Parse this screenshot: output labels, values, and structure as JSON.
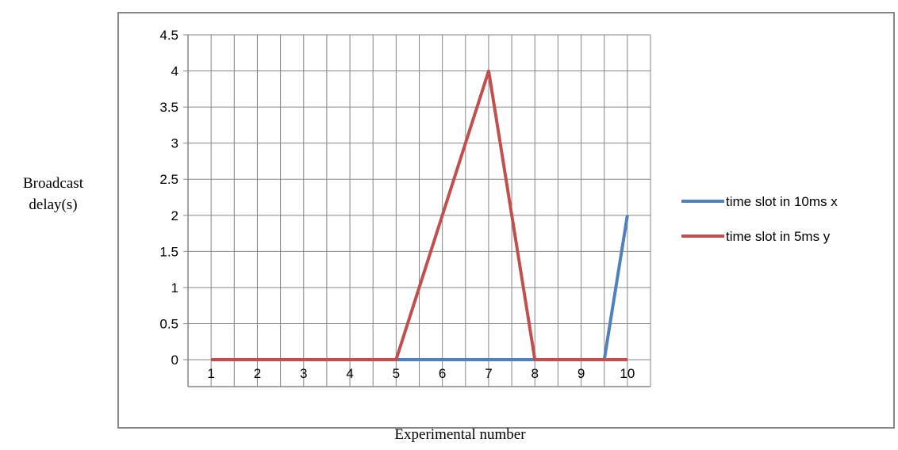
{
  "chart_data": {
    "type": "line",
    "categories": [
      "1",
      "2",
      "3",
      "4",
      "5",
      "6",
      "7",
      "8",
      "9",
      "10"
    ],
    "series": [
      {
        "name": "time slot in 10ms x",
        "color": "#4F81BD",
        "x": [
          1,
          2,
          3,
          4,
          5,
          6,
          7,
          8,
          9,
          9.5,
          10
        ],
        "y": [
          0,
          0,
          0,
          0,
          0,
          0,
          0,
          0,
          0,
          0,
          2
        ]
      },
      {
        "name": "time slot in 5ms y",
        "color": "#C0504D",
        "x": [
          1,
          2,
          3,
          4,
          5,
          6,
          7,
          8,
          9,
          10
        ],
        "y": [
          0,
          0,
          0,
          0,
          0,
          2,
          4,
          0,
          0,
          0
        ]
      }
    ],
    "ylim": [
      0,
      4.5
    ],
    "yticks": [
      "0",
      "0.5",
      "1",
      "1.5",
      "2",
      "2.5",
      "3",
      "3.5",
      "4",
      "4.5"
    ],
    "xlabel": "Experimental number",
    "ylabel_line1": "Broadcast",
    "ylabel_line2": "delay(s)",
    "grid": true,
    "legend_position": "right"
  }
}
